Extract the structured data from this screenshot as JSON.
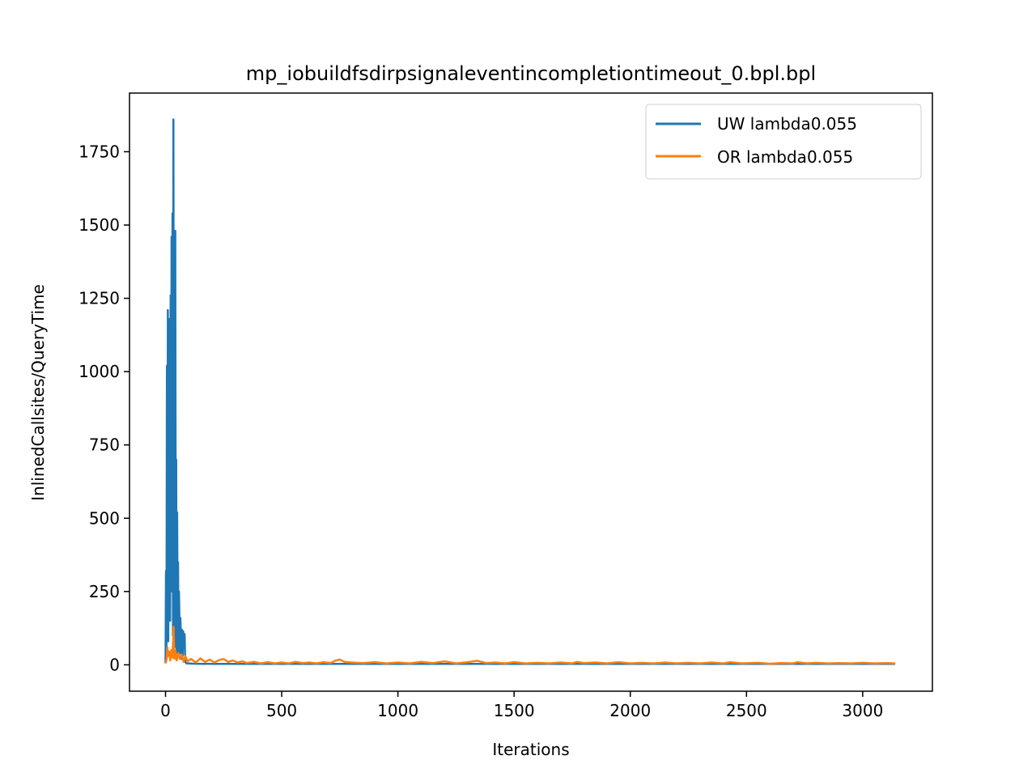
{
  "chart_data": {
    "type": "line",
    "title": "mp_iobuildfsdirpsignaleventincompletiontimeout_0.bpl.bpl",
    "xlabel": "Iterations",
    "ylabel": "InlinedCallsites/QueryTime",
    "xlim": [
      -155,
      3300
    ],
    "ylim": [
      -90,
      1950
    ],
    "xticks": [
      0,
      500,
      1000,
      1500,
      2000,
      2500,
      3000
    ],
    "yticks": [
      0,
      250,
      500,
      750,
      1000,
      1250,
      1500,
      1750
    ],
    "grid": false,
    "legend_position": "top-right",
    "series": [
      {
        "name": "UW lambda0.055",
        "color": "#1f77b4",
        "points": [
          [
            0,
            5
          ],
          [
            2,
            320
          ],
          [
            4,
            30
          ],
          [
            6,
            1020
          ],
          [
            8,
            200
          ],
          [
            10,
            1210
          ],
          [
            12,
            80
          ],
          [
            14,
            1180
          ],
          [
            16,
            300
          ],
          [
            18,
            1000
          ],
          [
            20,
            150
          ],
          [
            22,
            1260
          ],
          [
            24,
            400
          ],
          [
            26,
            1460
          ],
          [
            28,
            250
          ],
          [
            30,
            1540
          ],
          [
            32,
            100
          ],
          [
            34,
            1860
          ],
          [
            36,
            500
          ],
          [
            38,
            1200
          ],
          [
            40,
            60
          ],
          [
            42,
            1480
          ],
          [
            44,
            300
          ],
          [
            46,
            700
          ],
          [
            48,
            40
          ],
          [
            50,
            520
          ],
          [
            52,
            200
          ],
          [
            54,
            350
          ],
          [
            56,
            30
          ],
          [
            58,
            250
          ],
          [
            60,
            150
          ],
          [
            62,
            40
          ],
          [
            64,
            160
          ],
          [
            66,
            100
          ],
          [
            68,
            20
          ],
          [
            70,
            120
          ],
          [
            72,
            110
          ],
          [
            74,
            30
          ],
          [
            76,
            115
          ],
          [
            78,
            90
          ],
          [
            80,
            60
          ],
          [
            82,
            105
          ],
          [
            85,
            10
          ],
          [
            90,
            5
          ],
          [
            120,
            4
          ],
          [
            200,
            3
          ],
          [
            400,
            3
          ],
          [
            1000,
            3
          ],
          [
            2000,
            3
          ],
          [
            3140,
            3
          ]
        ]
      },
      {
        "name": "OR lambda0.055",
        "color": "#ff7f0e",
        "points": [
          [
            0,
            5
          ],
          [
            5,
            20
          ],
          [
            8,
            60
          ],
          [
            12,
            30
          ],
          [
            16,
            45
          ],
          [
            20,
            15
          ],
          [
            25,
            50
          ],
          [
            30,
            25
          ],
          [
            35,
            130
          ],
          [
            38,
            20
          ],
          [
            42,
            50
          ],
          [
            48,
            15
          ],
          [
            55,
            40
          ],
          [
            62,
            20
          ],
          [
            70,
            35
          ],
          [
            78,
            10
          ],
          [
            85,
            30
          ],
          [
            95,
            12
          ],
          [
            110,
            20
          ],
          [
            130,
            8
          ],
          [
            150,
            22
          ],
          [
            170,
            10
          ],
          [
            190,
            18
          ],
          [
            210,
            8
          ],
          [
            230,
            16
          ],
          [
            250,
            20
          ],
          [
            270,
            10
          ],
          [
            290,
            15
          ],
          [
            310,
            8
          ],
          [
            330,
            12
          ],
          [
            350,
            6
          ],
          [
            380,
            10
          ],
          [
            410,
            5
          ],
          [
            440,
            9
          ],
          [
            470,
            5
          ],
          [
            500,
            8
          ],
          [
            530,
            5
          ],
          [
            560,
            10
          ],
          [
            590,
            6
          ],
          [
            620,
            8
          ],
          [
            650,
            5
          ],
          [
            680,
            9
          ],
          [
            710,
            6
          ],
          [
            730,
            14
          ],
          [
            750,
            18
          ],
          [
            770,
            10
          ],
          [
            800,
            8
          ],
          [
            850,
            6
          ],
          [
            900,
            9
          ],
          [
            950,
            5
          ],
          [
            1000,
            8
          ],
          [
            1050,
            5
          ],
          [
            1100,
            10
          ],
          [
            1150,
            6
          ],
          [
            1200,
            12
          ],
          [
            1250,
            5
          ],
          [
            1300,
            9
          ],
          [
            1340,
            14
          ],
          [
            1380,
            6
          ],
          [
            1420,
            8
          ],
          [
            1460,
            5
          ],
          [
            1500,
            9
          ],
          [
            1550,
            5
          ],
          [
            1600,
            7
          ],
          [
            1650,
            5
          ],
          [
            1700,
            8
          ],
          [
            1750,
            5
          ],
          [
            1770,
            10
          ],
          [
            1800,
            6
          ],
          [
            1850,
            8
          ],
          [
            1900,
            5
          ],
          [
            1950,
            9
          ],
          [
            2000,
            5
          ],
          [
            2050,
            7
          ],
          [
            2100,
            5
          ],
          [
            2150,
            8
          ],
          [
            2200,
            5
          ],
          [
            2250,
            7
          ],
          [
            2300,
            5
          ],
          [
            2350,
            8
          ],
          [
            2400,
            5
          ],
          [
            2430,
            9
          ],
          [
            2480,
            5
          ],
          [
            2550,
            7
          ],
          [
            2600,
            4
          ],
          [
            2650,
            6
          ],
          [
            2700,
            5
          ],
          [
            2720,
            9
          ],
          [
            2760,
            5
          ],
          [
            2800,
            7
          ],
          [
            2850,
            5
          ],
          [
            2900,
            6
          ],
          [
            2950,
            5
          ],
          [
            3000,
            7
          ],
          [
            3050,
            5
          ],
          [
            3100,
            6
          ],
          [
            3140,
            5
          ]
        ]
      }
    ]
  }
}
